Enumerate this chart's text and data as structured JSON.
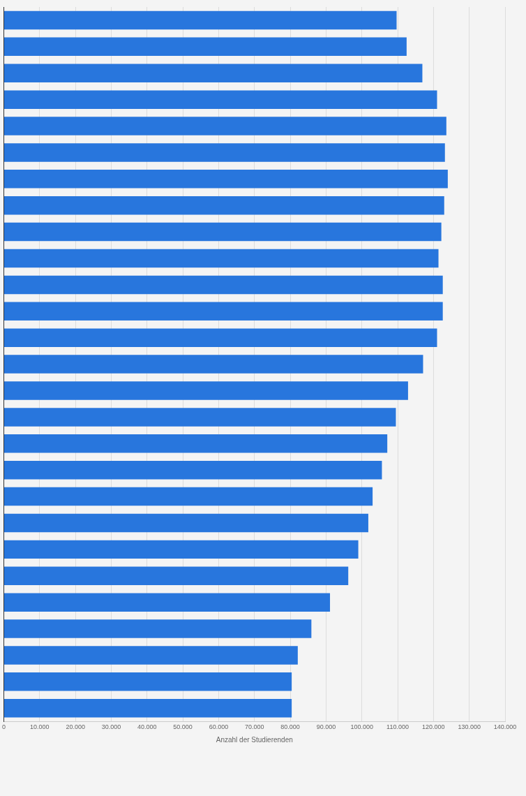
{
  "chart_data": {
    "type": "bar",
    "orientation": "horizontal",
    "xlabel": "Anzahl der Studierenden",
    "categories": [
      null,
      null,
      null,
      null,
      null,
      null,
      null,
      null,
      null,
      null,
      null,
      null,
      null,
      null,
      null,
      null,
      null,
      null,
      null,
      null,
      null,
      null,
      null,
      null,
      null,
      null,
      null
    ],
    "values": [
      109700,
      112500,
      116900,
      121000,
      123600,
      123200,
      124000,
      123000,
      122200,
      121400,
      122600,
      122600,
      121000,
      117100,
      112900,
      109500,
      107100,
      105600,
      103000,
      101800,
      99000,
      96200,
      91100,
      85900,
      82100,
      80400,
      80400
    ],
    "color": "#2876dd",
    "xlim": [
      0,
      140000
    ],
    "xticks": [
      0,
      {
        "value": 10000,
        "label": "10.000"
      },
      {
        "value": 20000,
        "label": "20.000"
      },
      {
        "value": 30000,
        "label": "30.000"
      },
      {
        "value": 40000,
        "label": "40.000"
      },
      {
        "value": 50000,
        "label": "50.000"
      },
      {
        "value": 60000,
        "label": "60.000"
      },
      {
        "value": 70000,
        "label": "70.000"
      },
      {
        "value": 80000,
        "label": "80.000"
      },
      {
        "value": 90000,
        "label": "90.000"
      },
      {
        "value": 100000,
        "label": "100.000"
      },
      {
        "value": 110000,
        "label": "110.000"
      },
      {
        "value": 120000,
        "label": "120.000"
      },
      {
        "value": 130000,
        "label": "130.000"
      },
      {
        "value": 140000,
        "label": "140.000"
      }
    ],
    "grid": "x",
    "tick_labels": "x",
    "legend": false
  }
}
